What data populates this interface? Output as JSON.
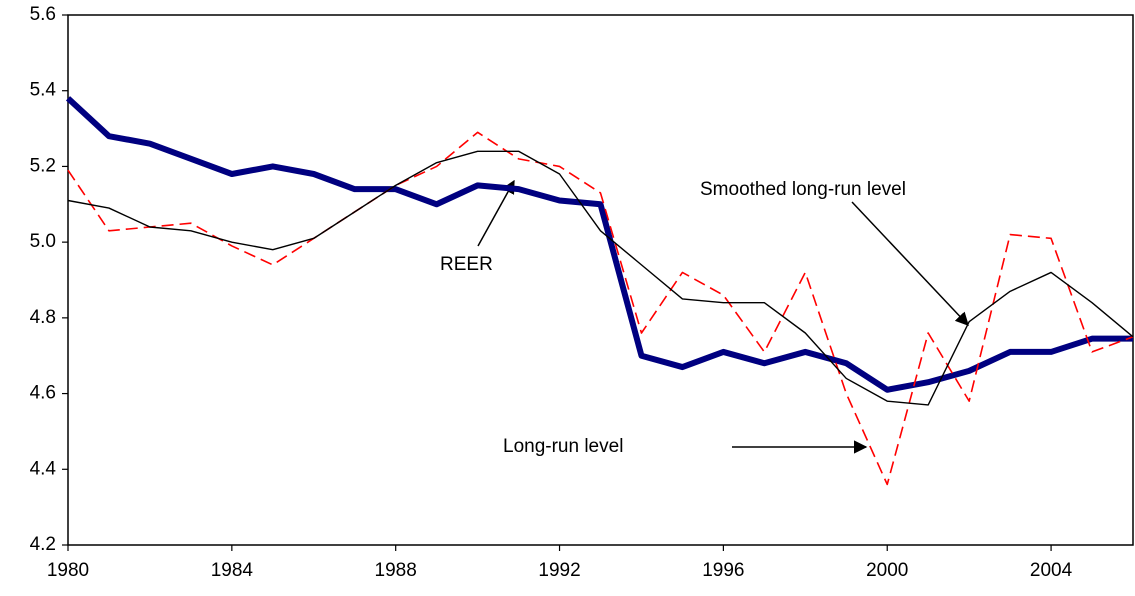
{
  "chart_data": {
    "type": "line",
    "x": [
      1980,
      1981,
      1982,
      1983,
      1984,
      1985,
      1986,
      1987,
      1988,
      1989,
      1990,
      1991,
      1992,
      1993,
      1994,
      1995,
      1996,
      1997,
      1998,
      1999,
      2000,
      2001,
      2002,
      2003,
      2004,
      2005,
      2006
    ],
    "series": [
      {
        "name": "REER",
        "color": "#000080",
        "width": 6,
        "dash": "solid",
        "values": [
          5.38,
          5.28,
          5.26,
          5.22,
          5.18,
          5.2,
          5.18,
          5.14,
          5.14,
          5.1,
          5.15,
          5.14,
          5.11,
          5.1,
          4.7,
          4.67,
          4.71,
          4.68,
          4.71,
          4.68,
          4.61,
          4.63,
          4.66,
          4.71,
          4.71,
          4.745,
          4.745
        ]
      },
      {
        "name": "Long-run level",
        "color": "#ff0000",
        "width": 1.6,
        "dash": "dashed",
        "values": [
          5.19,
          5.03,
          5.04,
          5.05,
          4.99,
          4.94,
          5.01,
          5.08,
          5.15,
          5.2,
          5.29,
          5.22,
          5.2,
          5.13,
          4.76,
          4.92,
          4.86,
          4.71,
          4.92,
          4.6,
          4.36,
          4.76,
          4.58,
          5.02,
          5.01,
          4.71,
          4.75
        ]
      },
      {
        "name": "Smoothed long-run level",
        "color": "#000000",
        "width": 1.4,
        "dash": "solid",
        "values": [
          5.11,
          5.09,
          5.04,
          5.03,
          5.0,
          4.98,
          5.01,
          5.08,
          5.15,
          5.21,
          5.24,
          5.24,
          5.18,
          5.03,
          4.94,
          4.85,
          4.84,
          4.84,
          4.76,
          4.64,
          4.58,
          4.57,
          4.79,
          4.87,
          4.92,
          4.84,
          4.75
        ]
      }
    ],
    "xlim": [
      1980,
      2006
    ],
    "xticks": [
      1980,
      1984,
      1988,
      1992,
      1996,
      2000,
      2004
    ],
    "ylim": [
      4.2,
      5.6
    ],
    "yticks": [
      4.2,
      4.4,
      4.6,
      4.8,
      {
        "value": 5,
        "label": "5.0"
      },
      5.2,
      5.4,
      5.6
    ],
    "annotations": [
      "REER",
      "Smoothed long-run level",
      "Long-run level"
    ]
  }
}
